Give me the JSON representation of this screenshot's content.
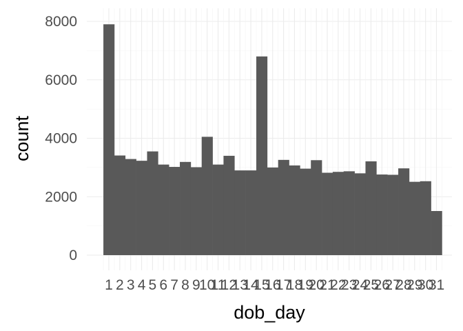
{
  "chart_data": {
    "type": "bar",
    "title": "",
    "xlabel": "dob_day",
    "ylabel": "count",
    "categories": [
      "1",
      "2",
      "3",
      "4",
      "5",
      "6",
      "7",
      "8",
      "9",
      "10",
      "11",
      "12",
      "13",
      "14",
      "15",
      "16",
      "17",
      "18",
      "19",
      "20",
      "21",
      "22",
      "23",
      "24",
      "25",
      "26",
      "27",
      "28",
      "29",
      "30",
      "31"
    ],
    "values": [
      7900,
      3410,
      3290,
      3230,
      3550,
      3100,
      3020,
      3190,
      3010,
      4050,
      3100,
      3400,
      2900,
      2900,
      6800,
      3000,
      3260,
      3070,
      2960,
      3250,
      2820,
      2850,
      2870,
      2800,
      3210,
      2760,
      2750,
      2970,
      2510,
      2530,
      1510
    ],
    "yticks": [
      "0",
      "2000",
      "4000",
      "6000",
      "8000"
    ],
    "ylim": [
      0,
      8200
    ],
    "grid": true,
    "bar_color": "#595959",
    "background": "#ffffff"
  }
}
